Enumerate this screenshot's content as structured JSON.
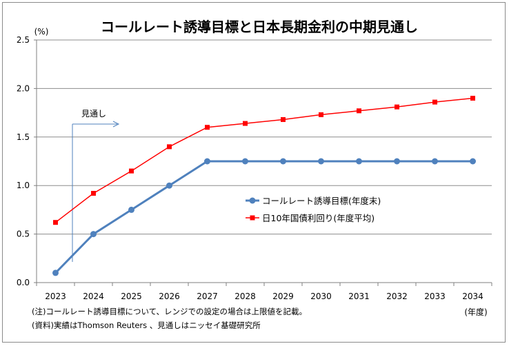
{
  "chart_data": {
    "type": "line",
    "title": "コールレート誘導目標と日本長期金利の中期見通し",
    "y_unit_label": "(%)",
    "x_unit_label": "(年度)",
    "categories": [
      "2023",
      "2024",
      "2025",
      "2026",
      "2027",
      "2028",
      "2029",
      "2030",
      "2031",
      "2032",
      "2033",
      "2034"
    ],
    "ylim": [
      0,
      2.5
    ],
    "yticks": [
      "0.0",
      "0.5",
      "1.0",
      "1.5",
      "2.0",
      "2.5"
    ],
    "grid": true,
    "legend_position": "center-right",
    "series": [
      {
        "name": "コールレート誘導目標(年度末)",
        "color": "#4f81bd",
        "marker": "circle",
        "values": [
          0.1,
          0.5,
          0.75,
          1.0,
          1.25,
          1.25,
          1.25,
          1.25,
          1.25,
          1.25,
          1.25,
          1.25
        ]
      },
      {
        "name": "日10年国債利回り(年度平均)",
        "color": "#ff0000",
        "marker": "square",
        "values": [
          0.62,
          0.92,
          1.15,
          1.4,
          1.6,
          1.64,
          1.68,
          1.73,
          1.77,
          1.81,
          1.86,
          1.9
        ]
      }
    ],
    "annotation": "見通し",
    "notes": [
      "(注)コールレート誘導目標について、レンジでの設定の場合は上限値を記載。",
      "(資料)実績はThomson Reuters 、見通しはニッセイ基礎研究所"
    ]
  }
}
